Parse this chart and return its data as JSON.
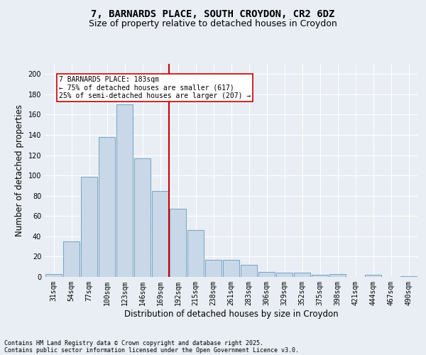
{
  "title": "7, BARNARDS PLACE, SOUTH CROYDON, CR2 6DZ",
  "subtitle": "Size of property relative to detached houses in Croydon",
  "xlabel": "Distribution of detached houses by size in Croydon",
  "ylabel": "Number of detached properties",
  "categories": [
    "31sqm",
    "54sqm",
    "77sqm",
    "100sqm",
    "123sqm",
    "146sqm",
    "169sqm",
    "192sqm",
    "215sqm",
    "238sqm",
    "261sqm",
    "283sqm",
    "306sqm",
    "329sqm",
    "352sqm",
    "375sqm",
    "398sqm",
    "421sqm",
    "444sqm",
    "467sqm",
    "490sqm"
  ],
  "values": [
    3,
    35,
    99,
    138,
    170,
    117,
    85,
    67,
    46,
    17,
    17,
    12,
    5,
    4,
    4,
    2,
    3,
    0,
    2,
    0,
    1
  ],
  "bar_color": "#c8d8e8",
  "bar_edge_color": "#6699bb",
  "vline_color": "#cc0000",
  "annotation_text": "7 BARNARDS PLACE: 183sqm\n← 75% of detached houses are smaller (617)\n25% of semi-detached houses are larger (207) →",
  "annotation_box_color": "#ffffff",
  "annotation_box_edge": "#cc0000",
  "background_color": "#e8eef4",
  "plot_bg_color": "#e8eef4",
  "ylim": [
    0,
    210
  ],
  "yticks": [
    0,
    20,
    40,
    60,
    80,
    100,
    120,
    140,
    160,
    180,
    200
  ],
  "footer_line1": "Contains HM Land Registry data © Crown copyright and database right 2025.",
  "footer_line2": "Contains public sector information licensed under the Open Government Licence v3.0.",
  "title_fontsize": 10,
  "subtitle_fontsize": 9,
  "tick_fontsize": 7,
  "label_fontsize": 8.5,
  "footer_fontsize": 6
}
